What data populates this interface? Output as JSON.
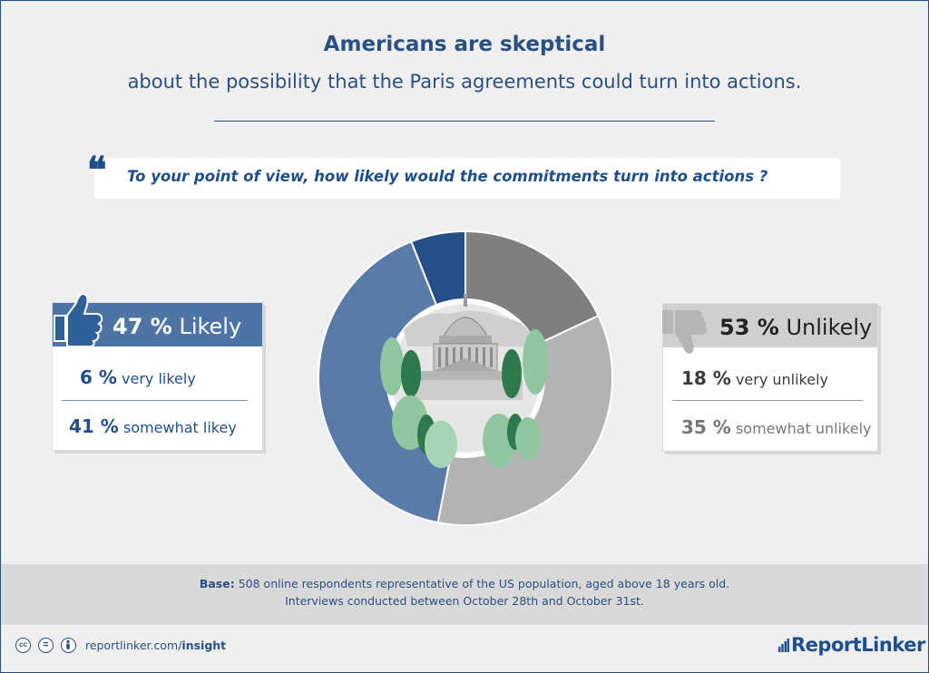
{
  "header": {
    "title": "Americans are skeptical",
    "subtitle": "about the possibility that the Paris agreements could turn into actions."
  },
  "question": {
    "text": "To your point of view, how likely would the commitments turn into actions ?"
  },
  "likely_card": {
    "head_value": "47 %",
    "head_label": "Likely",
    "rows": [
      {
        "value": "6 %",
        "label": "very likely"
      },
      {
        "value": "41 %",
        "label": "somewhat likey"
      }
    ]
  },
  "unlikely_card": {
    "head_value": "53 %",
    "head_label": "Unlikely",
    "rows": [
      {
        "value": "18 %",
        "label": "very unlikely"
      },
      {
        "value": "35 %",
        "label": "somewhat unlikely"
      }
    ]
  },
  "footer": {
    "base_label": "Base:",
    "base_text": "508 online respondents representative of the US population, aged above 18 years old.",
    "base_text2": "Interviews conducted between October 28th and October 31st.",
    "url_domain": "reportlinker.com/",
    "url_path": "insight",
    "logo": "ReportLinker",
    "license_icons": [
      "cc",
      "=",
      "person"
    ]
  },
  "chart_data": {
    "type": "pie",
    "donut": true,
    "series": [
      {
        "name": "very unlikely",
        "value": 18,
        "color": "#7f7f7f"
      },
      {
        "name": "somewhat unlikely",
        "value": 35,
        "color": "#b3b3b3"
      },
      {
        "name": "somewhat likey",
        "value": 41,
        "color": "#5a7ba8"
      },
      {
        "name": "very likely",
        "value": 6,
        "color": "#244f87"
      }
    ]
  }
}
